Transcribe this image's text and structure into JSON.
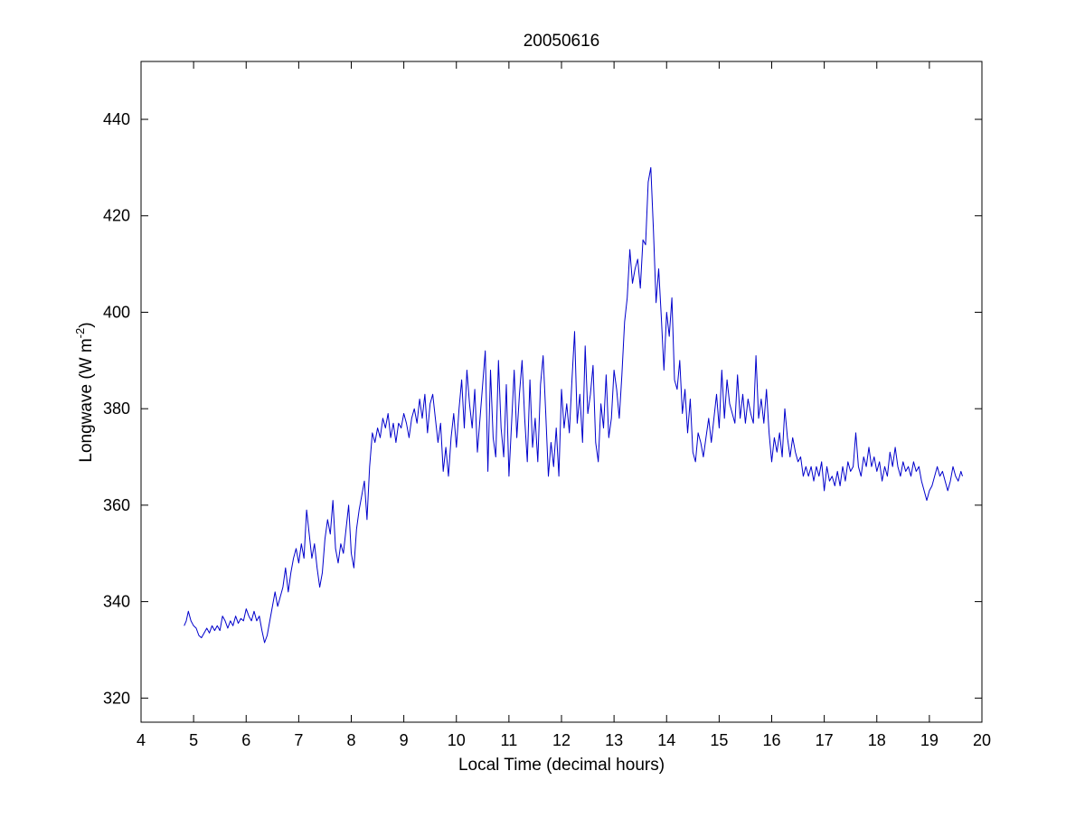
{
  "chart_data": {
    "type": "line",
    "title": "20050616",
    "xlabel": "Local Time (decimal hours)",
    "ylabel": {
      "prefix": "Longwave (W m",
      "sup": "-2",
      "suffix": ")"
    },
    "xlim": [
      4,
      20
    ],
    "ylim": [
      315,
      452
    ],
    "xticks": [
      4,
      5,
      6,
      7,
      8,
      9,
      10,
      11,
      12,
      13,
      14,
      15,
      16,
      17,
      18,
      19,
      20
    ],
    "yticks": [
      320,
      340,
      360,
      380,
      400,
      420,
      440
    ],
    "grid": false,
    "box": true,
    "series": [
      {
        "color": "#0000cc",
        "points": [
          [
            4.82,
            335
          ],
          [
            4.86,
            336
          ],
          [
            4.9,
            338
          ],
          [
            4.95,
            336
          ],
          [
            5.0,
            335
          ],
          [
            5.05,
            334.5
          ],
          [
            5.1,
            333
          ],
          [
            5.15,
            332.5
          ],
          [
            5.2,
            333.5
          ],
          [
            5.25,
            334.5
          ],
          [
            5.3,
            333.5
          ],
          [
            5.35,
            335
          ],
          [
            5.4,
            334
          ],
          [
            5.45,
            335
          ],
          [
            5.5,
            334
          ],
          [
            5.55,
            337
          ],
          [
            5.6,
            336
          ],
          [
            5.65,
            334.5
          ],
          [
            5.7,
            336
          ],
          [
            5.75,
            335
          ],
          [
            5.8,
            337
          ],
          [
            5.85,
            335.5
          ],
          [
            5.9,
            336.5
          ],
          [
            5.95,
            336
          ],
          [
            6.0,
            338.5
          ],
          [
            6.05,
            337
          ],
          [
            6.1,
            336
          ],
          [
            6.15,
            338
          ],
          [
            6.2,
            336
          ],
          [
            6.25,
            337
          ],
          [
            6.3,
            334
          ],
          [
            6.35,
            331.5
          ],
          [
            6.4,
            333
          ],
          [
            6.45,
            336
          ],
          [
            6.5,
            339
          ],
          [
            6.55,
            342
          ],
          [
            6.6,
            339
          ],
          [
            6.65,
            341
          ],
          [
            6.7,
            343
          ],
          [
            6.75,
            347
          ],
          [
            6.8,
            342
          ],
          [
            6.85,
            346
          ],
          [
            6.9,
            349
          ],
          [
            6.95,
            351
          ],
          [
            7.0,
            348
          ],
          [
            7.05,
            352
          ],
          [
            7.1,
            349
          ],
          [
            7.15,
            359
          ],
          [
            7.2,
            354
          ],
          [
            7.25,
            349
          ],
          [
            7.3,
            352
          ],
          [
            7.35,
            347
          ],
          [
            7.4,
            343
          ],
          [
            7.45,
            346
          ],
          [
            7.5,
            353
          ],
          [
            7.55,
            357
          ],
          [
            7.6,
            354
          ],
          [
            7.65,
            361
          ],
          [
            7.7,
            351
          ],
          [
            7.75,
            348
          ],
          [
            7.8,
            352
          ],
          [
            7.85,
            350
          ],
          [
            7.9,
            355
          ],
          [
            7.95,
            360
          ],
          [
            8.0,
            350
          ],
          [
            8.05,
            347
          ],
          [
            8.1,
            355
          ],
          [
            8.15,
            359
          ],
          [
            8.2,
            362
          ],
          [
            8.25,
            365
          ],
          [
            8.3,
            357
          ],
          [
            8.35,
            368
          ],
          [
            8.4,
            375
          ],
          [
            8.45,
            373
          ],
          [
            8.5,
            376
          ],
          [
            8.55,
            374
          ],
          [
            8.6,
            378
          ],
          [
            8.65,
            376
          ],
          [
            8.7,
            379
          ],
          [
            8.75,
            374
          ],
          [
            8.8,
            377
          ],
          [
            8.85,
            373
          ],
          [
            8.9,
            377
          ],
          [
            8.95,
            376
          ],
          [
            9.0,
            379
          ],
          [
            9.05,
            377
          ],
          [
            9.1,
            374
          ],
          [
            9.15,
            378
          ],
          [
            9.2,
            380
          ],
          [
            9.25,
            377
          ],
          [
            9.3,
            382
          ],
          [
            9.35,
            378
          ],
          [
            9.4,
            383
          ],
          [
            9.45,
            375
          ],
          [
            9.5,
            381
          ],
          [
            9.55,
            383
          ],
          [
            9.6,
            378
          ],
          [
            9.65,
            373
          ],
          [
            9.7,
            377
          ],
          [
            9.75,
            367
          ],
          [
            9.8,
            372
          ],
          [
            9.85,
            366
          ],
          [
            9.9,
            374
          ],
          [
            9.95,
            379
          ],
          [
            10.0,
            372
          ],
          [
            10.05,
            380
          ],
          [
            10.1,
            386
          ],
          [
            10.15,
            376
          ],
          [
            10.2,
            388
          ],
          [
            10.25,
            381
          ],
          [
            10.3,
            376
          ],
          [
            10.35,
            384
          ],
          [
            10.4,
            371
          ],
          [
            10.45,
            378
          ],
          [
            10.5,
            385
          ],
          [
            10.55,
            392
          ],
          [
            10.6,
            367
          ],
          [
            10.65,
            388
          ],
          [
            10.7,
            374
          ],
          [
            10.75,
            370
          ],
          [
            10.8,
            390
          ],
          [
            10.85,
            376
          ],
          [
            10.9,
            370
          ],
          [
            10.95,
            385
          ],
          [
            11.0,
            366
          ],
          [
            11.05,
            377
          ],
          [
            11.1,
            388
          ],
          [
            11.15,
            374
          ],
          [
            11.2,
            383
          ],
          [
            11.25,
            390
          ],
          [
            11.3,
            378
          ],
          [
            11.35,
            369
          ],
          [
            11.4,
            386
          ],
          [
            11.45,
            372
          ],
          [
            11.5,
            378
          ],
          [
            11.55,
            369
          ],
          [
            11.6,
            385
          ],
          [
            11.65,
            391
          ],
          [
            11.7,
            379
          ],
          [
            11.75,
            366
          ],
          [
            11.8,
            373
          ],
          [
            11.85,
            368
          ],
          [
            11.9,
            376
          ],
          [
            11.95,
            366
          ],
          [
            12.0,
            384
          ],
          [
            12.05,
            376
          ],
          [
            12.1,
            381
          ],
          [
            12.15,
            375
          ],
          [
            12.2,
            386
          ],
          [
            12.25,
            396
          ],
          [
            12.3,
            377
          ],
          [
            12.35,
            383
          ],
          [
            12.4,
            373
          ],
          [
            12.45,
            393
          ],
          [
            12.5,
            379
          ],
          [
            12.55,
            383
          ],
          [
            12.6,
            389
          ],
          [
            12.65,
            373
          ],
          [
            12.7,
            369
          ],
          [
            12.75,
            381
          ],
          [
            12.8,
            376
          ],
          [
            12.85,
            387
          ],
          [
            12.9,
            374
          ],
          [
            12.95,
            378
          ],
          [
            13.0,
            388
          ],
          [
            13.05,
            384
          ],
          [
            13.1,
            378
          ],
          [
            13.15,
            387
          ],
          [
            13.2,
            398
          ],
          [
            13.25,
            403
          ],
          [
            13.3,
            413
          ],
          [
            13.35,
            406
          ],
          [
            13.4,
            409
          ],
          [
            13.45,
            411
          ],
          [
            13.5,
            405
          ],
          [
            13.55,
            415
          ],
          [
            13.6,
            414
          ],
          [
            13.65,
            427
          ],
          [
            13.7,
            430
          ],
          [
            13.75,
            417
          ],
          [
            13.8,
            402
          ],
          [
            13.85,
            409
          ],
          [
            13.9,
            399
          ],
          [
            13.95,
            388
          ],
          [
            14.0,
            400
          ],
          [
            14.05,
            395
          ],
          [
            14.1,
            403
          ],
          [
            14.15,
            386
          ],
          [
            14.2,
            384
          ],
          [
            14.25,
            390
          ],
          [
            14.3,
            379
          ],
          [
            14.35,
            384
          ],
          [
            14.4,
            375
          ],
          [
            14.45,
            382
          ],
          [
            14.5,
            371
          ],
          [
            14.55,
            369
          ],
          [
            14.6,
            375
          ],
          [
            14.65,
            373
          ],
          [
            14.7,
            370
          ],
          [
            14.75,
            374
          ],
          [
            14.8,
            378
          ],
          [
            14.85,
            373
          ],
          [
            14.9,
            378
          ],
          [
            14.95,
            383
          ],
          [
            15.0,
            376
          ],
          [
            15.05,
            388
          ],
          [
            15.1,
            378
          ],
          [
            15.15,
            386
          ],
          [
            15.2,
            381
          ],
          [
            15.25,
            379
          ],
          [
            15.3,
            377
          ],
          [
            15.35,
            387
          ],
          [
            15.4,
            378
          ],
          [
            15.45,
            383
          ],
          [
            15.5,
            377
          ],
          [
            15.55,
            382
          ],
          [
            15.6,
            379
          ],
          [
            15.65,
            377
          ],
          [
            15.7,
            391
          ],
          [
            15.75,
            378
          ],
          [
            15.8,
            382
          ],
          [
            15.85,
            377
          ],
          [
            15.9,
            384
          ],
          [
            15.95,
            375
          ],
          [
            16.0,
            369
          ],
          [
            16.05,
            374
          ],
          [
            16.1,
            371
          ],
          [
            16.15,
            375
          ],
          [
            16.2,
            370
          ],
          [
            16.25,
            380
          ],
          [
            16.3,
            374
          ],
          [
            16.35,
            370
          ],
          [
            16.4,
            374
          ],
          [
            16.45,
            371
          ],
          [
            16.5,
            369
          ],
          [
            16.55,
            370
          ],
          [
            16.6,
            366
          ],
          [
            16.65,
            368
          ],
          [
            16.7,
            366
          ],
          [
            16.75,
            368
          ],
          [
            16.8,
            365
          ],
          [
            16.85,
            368
          ],
          [
            16.9,
            366
          ],
          [
            16.95,
            369
          ],
          [
            17.0,
            363
          ],
          [
            17.05,
            368
          ],
          [
            17.1,
            365
          ],
          [
            17.15,
            366
          ],
          [
            17.2,
            364
          ],
          [
            17.25,
            367
          ],
          [
            17.3,
            364
          ],
          [
            17.35,
            368
          ],
          [
            17.4,
            365
          ],
          [
            17.45,
            369
          ],
          [
            17.5,
            367
          ],
          [
            17.55,
            368
          ],
          [
            17.6,
            375
          ],
          [
            17.65,
            368
          ],
          [
            17.7,
            366
          ],
          [
            17.75,
            370
          ],
          [
            17.8,
            368
          ],
          [
            17.85,
            372
          ],
          [
            17.9,
            368
          ],
          [
            17.95,
            370
          ],
          [
            18.0,
            367
          ],
          [
            18.05,
            369
          ],
          [
            18.1,
            365
          ],
          [
            18.15,
            368
          ],
          [
            18.2,
            366
          ],
          [
            18.25,
            371
          ],
          [
            18.3,
            368
          ],
          [
            18.35,
            372
          ],
          [
            18.4,
            368
          ],
          [
            18.45,
            366
          ],
          [
            18.5,
            369
          ],
          [
            18.55,
            367
          ],
          [
            18.6,
            368
          ],
          [
            18.65,
            366
          ],
          [
            18.7,
            369
          ],
          [
            18.75,
            367
          ],
          [
            18.8,
            368
          ],
          [
            18.85,
            365
          ],
          [
            18.9,
            363
          ],
          [
            18.95,
            361
          ],
          [
            19.0,
            363
          ],
          [
            19.05,
            364
          ],
          [
            19.1,
            366
          ],
          [
            19.15,
            368
          ],
          [
            19.2,
            366
          ],
          [
            19.25,
            367
          ],
          [
            19.3,
            365
          ],
          [
            19.35,
            363
          ],
          [
            19.4,
            365
          ],
          [
            19.45,
            368
          ],
          [
            19.5,
            366
          ],
          [
            19.55,
            365
          ],
          [
            19.6,
            367
          ],
          [
            19.63,
            366
          ]
        ]
      }
    ]
  }
}
